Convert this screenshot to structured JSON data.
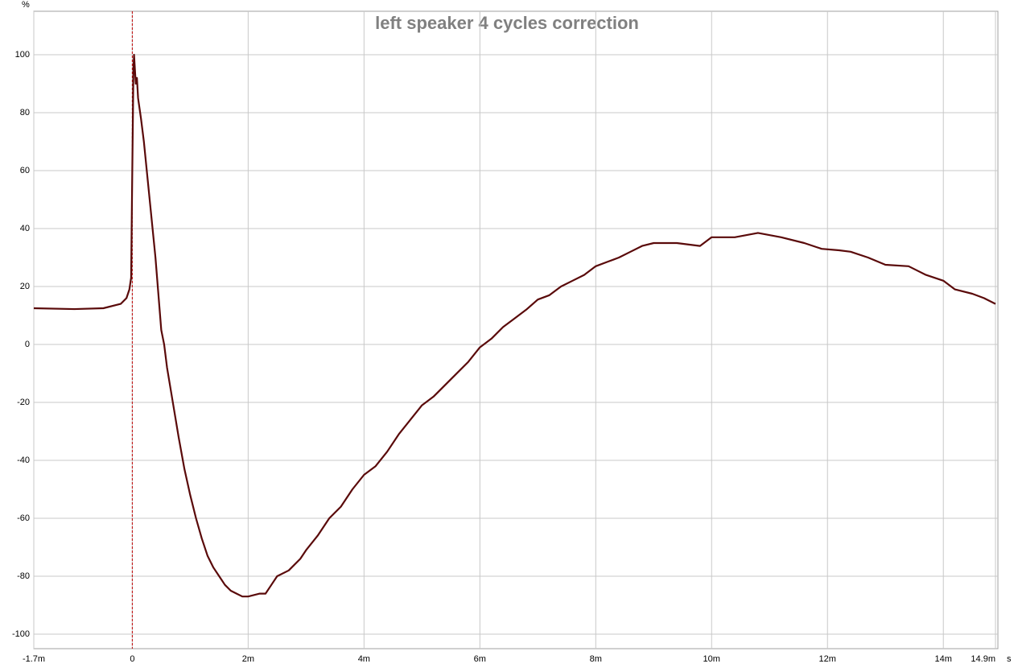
{
  "chart_data": {
    "type": "line",
    "title": "left speaker 4 cycles correction",
    "y_unit": "%",
    "x_unit": "s",
    "xlim": [
      -0.0017,
      0.0149
    ],
    "ylim": [
      -105,
      115
    ],
    "xticks": [
      {
        "value": -0.0017,
        "label": "-1.7m"
      },
      0,
      {
        "value": 0.002,
        "label": "2m"
      },
      {
        "value": 0.004,
        "label": "4m"
      },
      {
        "value": 0.006,
        "label": "6m"
      },
      {
        "value": 0.008,
        "label": "8m"
      },
      {
        "value": 0.01,
        "label": "10m"
      },
      {
        "value": 0.012,
        "label": "12m"
      },
      {
        "value": 0.014,
        "label": "14m"
      },
      {
        "value": 0.0149,
        "label": "14.9m"
      }
    ],
    "yticks": [
      -100,
      -80,
      -60,
      -40,
      -20,
      0,
      20,
      40,
      60,
      80,
      100
    ],
    "grid": true,
    "series": [
      {
        "color": "#5a0a0a",
        "x": [
          -0.0017,
          -0.001,
          -0.0005,
          -0.0002,
          -0.0001,
          -5e-05,
          -2e-05,
          0,
          2e-05,
          3e-05,
          6e-05,
          8e-05,
          0.0001,
          0.00015,
          0.0002,
          0.0003,
          0.0004,
          0.0005,
          0.00055,
          0.0006,
          0.0007,
          0.0008,
          0.0009,
          0.001,
          0.0011,
          0.0012,
          0.0013,
          0.0014,
          0.0015,
          0.0016,
          0.0017,
          0.0018,
          0.0019,
          0.002,
          0.0022,
          0.0023,
          0.0024,
          0.0025,
          0.0027,
          0.0029,
          0.003,
          0.0032,
          0.0034,
          0.0036,
          0.0038,
          0.004,
          0.0042,
          0.0044,
          0.0046,
          0.0048,
          0.005,
          0.0052,
          0.0055,
          0.0058,
          0.006,
          0.0062,
          0.0064,
          0.0066,
          0.0068,
          0.007,
          0.0072,
          0.0074,
          0.0076,
          0.0078,
          0.008,
          0.0082,
          0.0084,
          0.0086,
          0.0088,
          0.009,
          0.0094,
          0.0098,
          0.01,
          0.0104,
          0.0108,
          0.0112,
          0.0116,
          0.0119,
          0.0122,
          0.0124,
          0.0127,
          0.013,
          0.0134,
          0.0137,
          0.014,
          0.0142,
          0.0145,
          0.0147,
          0.0149
        ],
        "values": [
          12.5,
          12.2,
          12.5,
          14,
          16,
          19,
          23,
          60,
          95,
          100,
          90,
          92,
          85,
          78,
          70,
          50,
          30,
          5,
          0,
          -8,
          -20,
          -32,
          -43,
          -52,
          -60,
          -67,
          -73,
          -77,
          -80,
          -83,
          -85,
          -86,
          -87,
          -87,
          -86,
          -86,
          -83,
          -80,
          -78,
          -74,
          -71,
          -66,
          -60,
          -56,
          -50,
          -45,
          -42,
          -37,
          -31,
          -26,
          -21,
          -18,
          -12,
          -6,
          -1,
          2,
          6,
          9,
          12,
          15.5,
          17,
          20,
          22,
          24,
          27,
          28.5,
          30,
          32,
          34,
          35,
          35,
          34,
          37,
          37,
          38.5,
          37,
          35,
          33,
          32.5,
          32,
          30,
          27.5,
          27,
          24,
          22,
          19,
          17.5,
          16,
          14
        ]
      }
    ]
  }
}
